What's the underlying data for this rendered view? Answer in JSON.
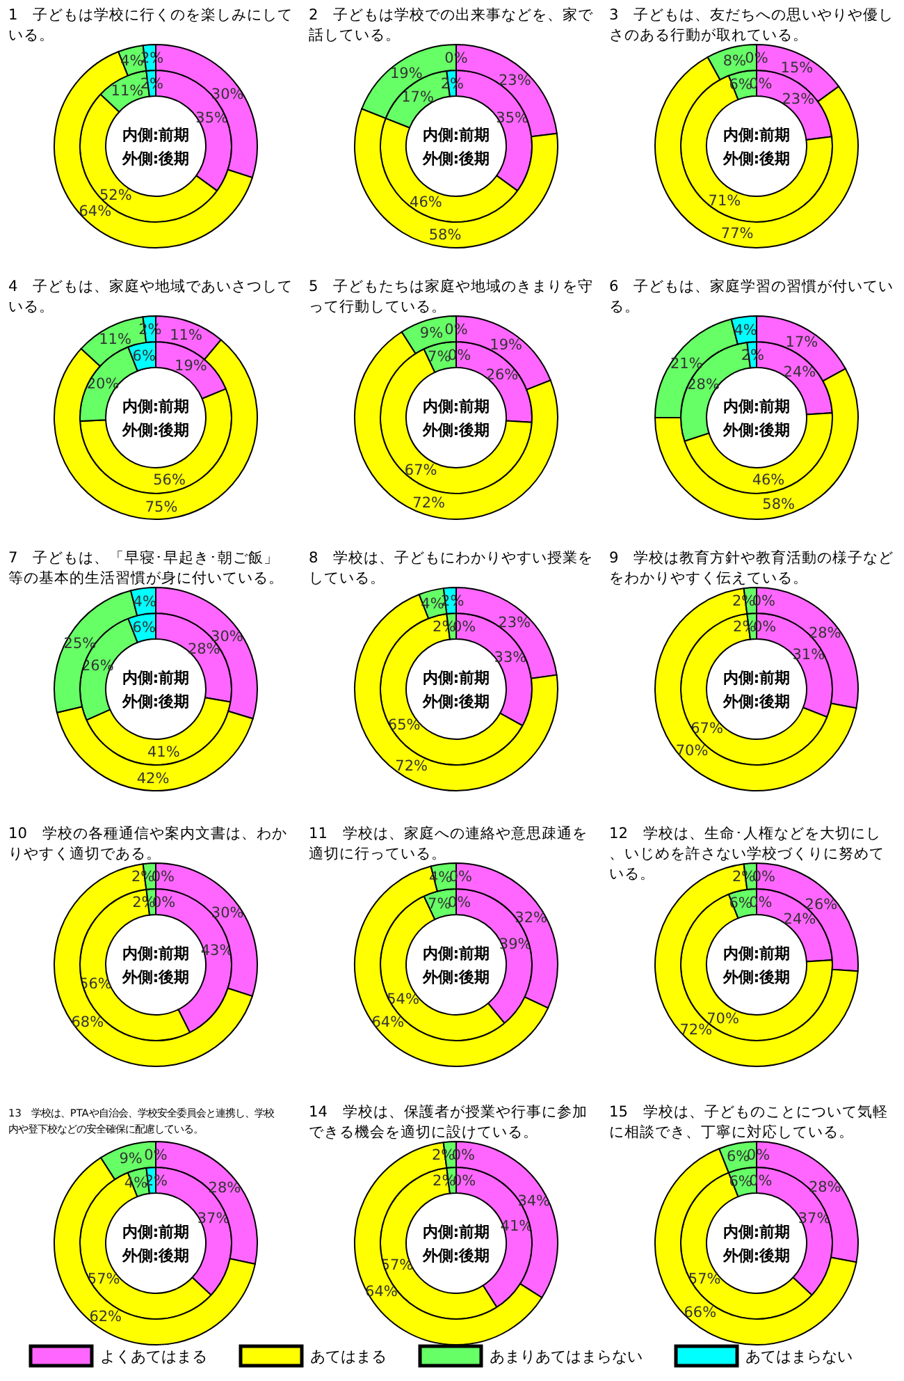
{
  "chart_data": [
    {
      "type": "donut",
      "title": "1　子どもは学校に行くのを楽しみにしている。",
      "colors": [
        "#ff66ff",
        "#ffff00",
        "#66ff66",
        "#00ffff"
      ],
      "annotations": [
        "内側:前期",
        "外側:後期"
      ],
      "series": [
        {
          "values": [
            35,
            52,
            11,
            2
          ],
          "value_labels": [
            "35%",
            "52%",
            "11%",
            "2%"
          ]
        },
        {
          "values": [
            30,
            64,
            4,
            2
          ],
          "value_labels": [
            "30%",
            "64%",
            "4%",
            "2%"
          ]
        }
      ]
    },
    {
      "type": "donut",
      "title": "2　子どもは学校での出来事などを、家で話している。",
      "colors": [
        "#ff66ff",
        "#ffff00",
        "#66ff66",
        "#00ffff"
      ],
      "annotations": [
        "内側:前期",
        "外側:後期"
      ],
      "series": [
        {
          "values": [
            35,
            46,
            17,
            2
          ],
          "value_labels": [
            "35%",
            "46%",
            "17%",
            "2%"
          ]
        },
        {
          "values": [
            23,
            58,
            19,
            0
          ],
          "value_labels": [
            "23%",
            "58%",
            "19%",
            "0%"
          ]
        }
      ]
    },
    {
      "type": "donut",
      "title": "3　子どもは、友だちへの思いやりや優しさのある行動が取れている。",
      "colors": [
        "#ff66ff",
        "#ffff00",
        "#66ff66",
        "#00ffff"
      ],
      "annotations": [
        "内側:前期",
        "外側:後期"
      ],
      "series": [
        {
          "values": [
            23,
            71,
            6,
            0
          ],
          "value_labels": [
            "23%",
            "71%",
            "6%",
            "0%"
          ]
        },
        {
          "values": [
            15,
            77,
            8,
            0
          ],
          "value_labels": [
            "15%",
            "77%",
            "8%",
            "0%"
          ]
        }
      ]
    },
    {
      "type": "donut",
      "title": "4　子どもは、家庭や地域であいさつしている。",
      "colors": [
        "#ff66ff",
        "#ffff00",
        "#66ff66",
        "#00ffff"
      ],
      "annotations": [
        "内側:前期",
        "外側:後期"
      ],
      "series": [
        {
          "values": [
            19,
            56,
            20,
            6
          ],
          "value_labels": [
            "19%",
            "56%",
            "20%",
            "6%"
          ]
        },
        {
          "values": [
            11,
            75,
            11,
            2
          ],
          "value_labels": [
            "11%",
            "75%",
            "11%",
            "2%"
          ]
        }
      ]
    },
    {
      "type": "donut",
      "title": "5　子どもたちは家庭や地域のきまりを守って行動している。",
      "colors": [
        "#ff66ff",
        "#ffff00",
        "#66ff66",
        "#00ffff"
      ],
      "annotations": [
        "内側:前期",
        "外側:後期"
      ],
      "series": [
        {
          "values": [
            26,
            67,
            7,
            0
          ],
          "value_labels": [
            "26%",
            "67%",
            "7%",
            "0%"
          ]
        },
        {
          "values": [
            19,
            72,
            9,
            0
          ],
          "value_labels": [
            "19%",
            "72%",
            "9%",
            "0%"
          ]
        }
      ]
    },
    {
      "type": "donut",
      "title": "6　子どもは、家庭学習の習慣が付いている。",
      "colors": [
        "#ff66ff",
        "#ffff00",
        "#66ff66",
        "#00ffff"
      ],
      "annotations": [
        "内側:前期",
        "外側:後期"
      ],
      "series": [
        {
          "values": [
            24,
            46,
            28,
            2
          ],
          "value_labels": [
            "24%",
            "46%",
            "28%",
            "2%"
          ]
        },
        {
          "values": [
            17,
            58,
            21,
            4
          ],
          "value_labels": [
            "17%",
            "58%",
            "21%",
            "4%"
          ]
        }
      ]
    },
    {
      "type": "donut",
      "title": "7　子どもは、「早寝･早起き･朝ご飯」等の基本的生活習慣が身に付いている。",
      "colors": [
        "#ff66ff",
        "#ffff00",
        "#66ff66",
        "#00ffff"
      ],
      "annotations": [
        "内側:前期",
        "外側:後期"
      ],
      "series": [
        {
          "values": [
            28,
            41,
            26,
            6
          ],
          "value_labels": [
            "28%",
            "41%",
            "26%",
            "6%"
          ]
        },
        {
          "values": [
            30,
            42,
            25,
            4
          ],
          "value_labels": [
            "30%",
            "42%",
            "25%",
            "4%"
          ]
        }
      ]
    },
    {
      "type": "donut",
      "title": "8　学校は、子どもにわかりやすい授業をしている。",
      "colors": [
        "#ff66ff",
        "#ffff00",
        "#66ff66",
        "#00ffff"
      ],
      "annotations": [
        "内側:前期",
        "外側:後期"
      ],
      "series": [
        {
          "values": [
            33,
            65,
            2,
            0
          ],
          "value_labels": [
            "33%",
            "65%",
            "2%",
            "0%"
          ]
        },
        {
          "values": [
            23,
            72,
            4,
            2
          ],
          "value_labels": [
            "23%",
            "72%",
            "4%",
            "2%"
          ]
        }
      ]
    },
    {
      "type": "donut",
      "title": "9　学校は教育方針や教育活動の様子などをわかりやすく伝えている。",
      "colors": [
        "#ff66ff",
        "#ffff00",
        "#66ff66",
        "#00ffff"
      ],
      "annotations": [
        "内側:前期",
        "外側:後期"
      ],
      "series": [
        {
          "values": [
            31,
            67,
            2,
            0
          ],
          "value_labels": [
            "31%",
            "67%",
            "2%",
            "0%"
          ]
        },
        {
          "values": [
            28,
            70,
            2,
            0
          ],
          "value_labels": [
            "28%",
            "70%",
            "2%",
            "0%"
          ]
        }
      ]
    },
    {
      "type": "donut",
      "title": "10　学校の各種通信や案内文書は、わかりやすく適切である。",
      "colors": [
        "#ff66ff",
        "#ffff00",
        "#66ff66",
        "#00ffff"
      ],
      "annotations": [
        "内側:前期",
        "外側:後期"
      ],
      "series": [
        {
          "values": [
            43,
            56,
            2,
            0
          ],
          "value_labels": [
            "43%",
            "56%",
            "2%",
            "0%"
          ]
        },
        {
          "values": [
            30,
            68,
            2,
            0
          ],
          "value_labels": [
            "30%",
            "68%",
            "2%",
            "0%"
          ]
        }
      ]
    },
    {
      "type": "donut",
      "title": "11　学校は、家庭への連絡や意思疎通を適切に行っている。",
      "colors": [
        "#ff66ff",
        "#ffff00",
        "#66ff66",
        "#00ffff"
      ],
      "annotations": [
        "内側:前期",
        "外側:後期"
      ],
      "series": [
        {
          "values": [
            39,
            54,
            7,
            0
          ],
          "value_labels": [
            "39%",
            "54%",
            "7%",
            "0%"
          ]
        },
        {
          "values": [
            32,
            64,
            4,
            0
          ],
          "value_labels": [
            "32%",
            "64%",
            "4%",
            "0%"
          ]
        }
      ]
    },
    {
      "type": "donut",
      "title": "12　学校は、生命･人権などを大切にし、いじめを許さない学校づくりに努めている。",
      "colors": [
        "#ff66ff",
        "#ffff00",
        "#66ff66",
        "#00ffff"
      ],
      "annotations": [
        "内側:前期",
        "外側:後期"
      ],
      "series": [
        {
          "values": [
            24,
            70,
            6,
            0
          ],
          "value_labels": [
            "24%",
            "70%",
            "6%",
            "0%"
          ]
        },
        {
          "values": [
            26,
            72,
            2,
            0
          ],
          "value_labels": [
            "26%",
            "72%",
            "2%",
            "0%"
          ]
        }
      ]
    },
    {
      "type": "donut",
      "title": "13　学校は、PTAや自治会、学校安全委員会と連携し、学校内や登下校などの安全確保に配慮している。",
      "colors": [
        "#ff66ff",
        "#ffff00",
        "#66ff66",
        "#00ffff"
      ],
      "annotations": [
        "内側:前期",
        "外側:後期"
      ],
      "series": [
        {
          "values": [
            37,
            57,
            4,
            2
          ],
          "value_labels": [
            "37%",
            "57%",
            "4%",
            "2%"
          ]
        },
        {
          "values": [
            28,
            62,
            9,
            0
          ],
          "value_labels": [
            "28%",
            "62%",
            "9%",
            "0%"
          ]
        }
      ]
    },
    {
      "type": "donut",
      "title": "14　学校は、保護者が授業や行事に参加できる機会を適切に設けている。",
      "colors": [
        "#ff66ff",
        "#ffff00",
        "#66ff66",
        "#00ffff"
      ],
      "annotations": [
        "内側:前期",
        "外側:後期"
      ],
      "series": [
        {
          "values": [
            41,
            57,
            2,
            0
          ],
          "value_labels": [
            "41%",
            "57%",
            "2%",
            "0%"
          ]
        },
        {
          "values": [
            34,
            64,
            2,
            0
          ],
          "value_labels": [
            "34%",
            "64%",
            "2%",
            "0%"
          ]
        }
      ]
    },
    {
      "type": "donut",
      "title": "15　学校は、子どものことについて気軽に相談でき、丁寧に対応している。",
      "categories": [
        "よくあてはまる",
        "あてはまる",
        "あまりあてはまらない",
        "あてはまらない"
      ],
      "colors": [
        "#ff66ff",
        "#ffff00",
        "#66ff66",
        "#00ffff"
      ],
      "annotations": [
        "内側:前期",
        "外側:後期"
      ],
      "legend": "bottom",
      "series": [
        {
          "values": [
            37,
            57,
            6,
            0
          ],
          "value_labels": [
            "37%",
            "57%",
            "6%",
            "0%"
          ]
        },
        {
          "values": [
            28,
            66,
            6,
            0
          ],
          "value_labels": [
            "28%",
            "66%",
            "6%",
            "0%"
          ]
        }
      ]
    }
  ]
}
